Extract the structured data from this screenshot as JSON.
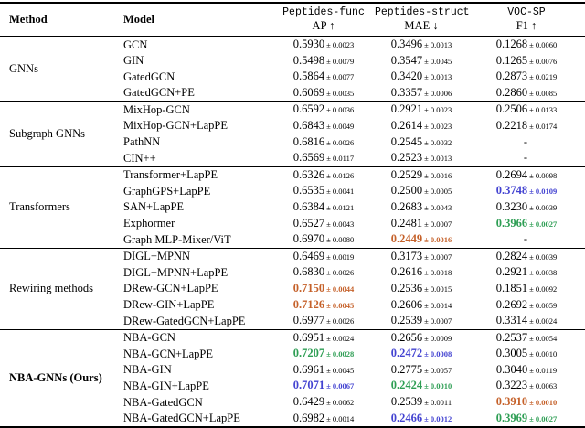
{
  "colors": {
    "hl-green": "#2e9e54",
    "hl-blue": "#4343d1",
    "hl-orange": "#c5612a",
    "rule": "#000000"
  },
  "header": {
    "method_label": "Method",
    "model_label": "Model",
    "columns": [
      {
        "dataset": "Peptides-func",
        "metric": "AP ↑"
      },
      {
        "dataset": "Peptides-struct",
        "metric": "MAE ↓"
      },
      {
        "dataset": "VOC-SP",
        "metric": "F1 ↑"
      }
    ]
  },
  "sections": [
    {
      "method": "GNNs",
      "emphasis": "normal",
      "rows": [
        {
          "model": "GCN",
          "cells": [
            {
              "v": "0.5930",
              "e": "± 0.0023",
              "hl": "none"
            },
            {
              "v": "0.3496",
              "e": "± 0.0013",
              "hl": "none"
            },
            {
              "v": "0.1268",
              "e": "± 0.0060",
              "hl": "none"
            }
          ]
        },
        {
          "model": "GIN",
          "cells": [
            {
              "v": "0.5498",
              "e": "± 0.0079",
              "hl": "none"
            },
            {
              "v": "0.3547",
              "e": "± 0.0045",
              "hl": "none"
            },
            {
              "v": "0.1265",
              "e": "± 0.0076",
              "hl": "none"
            }
          ]
        },
        {
          "model": "GatedGCN",
          "cells": [
            {
              "v": "0.5864",
              "e": "± 0.0077",
              "hl": "none"
            },
            {
              "v": "0.3420",
              "e": "± 0.0013",
              "hl": "none"
            },
            {
              "v": "0.2873",
              "e": "± 0.0219",
              "hl": "none"
            }
          ]
        },
        {
          "model": "GatedGCN+PE",
          "cells": [
            {
              "v": "0.6069",
              "e": "± 0.0035",
              "hl": "none"
            },
            {
              "v": "0.3357",
              "e": "± 0.0006",
              "hl": "none"
            },
            {
              "v": "0.2860",
              "e": "± 0.0085",
              "hl": "none"
            }
          ]
        }
      ]
    },
    {
      "method": "Subgraph GNNs",
      "emphasis": "normal",
      "rows": [
        {
          "model": "MixHop-GCN",
          "cells": [
            {
              "v": "0.6592",
              "e": "± 0.0036",
              "hl": "none"
            },
            {
              "v": "0.2921",
              "e": "± 0.0023",
              "hl": "none"
            },
            {
              "v": "0.2506",
              "e": "± 0.0133",
              "hl": "none"
            }
          ]
        },
        {
          "model": "MixHop-GCN+LapPE",
          "cells": [
            {
              "v": "0.6843",
              "e": "± 0.0049",
              "hl": "none"
            },
            {
              "v": "0.2614",
              "e": "± 0.0023",
              "hl": "none"
            },
            {
              "v": "0.2218",
              "e": "± 0.0174",
              "hl": "none"
            }
          ]
        },
        {
          "model": "PathNN",
          "cells": [
            {
              "v": "0.6816",
              "e": "± 0.0026",
              "hl": "none"
            },
            {
              "v": "0.2545",
              "e": "± 0.0032",
              "hl": "none"
            },
            {
              "v": "-",
              "e": "",
              "hl": "none"
            }
          ]
        },
        {
          "model": "CIN++",
          "cells": [
            {
              "v": "0.6569",
              "e": "± 0.0117",
              "hl": "none"
            },
            {
              "v": "0.2523",
              "e": "± 0.0013",
              "hl": "none"
            },
            {
              "v": "-",
              "e": "",
              "hl": "none"
            }
          ]
        }
      ]
    },
    {
      "method": "Transformers",
      "emphasis": "normal",
      "rows": [
        {
          "model": "Transformer+LapPE",
          "cells": [
            {
              "v": "0.6326",
              "e": "± 0.0126",
              "hl": "none"
            },
            {
              "v": "0.2529",
              "e": "± 0.0016",
              "hl": "none"
            },
            {
              "v": "0.2694",
              "e": "± 0.0098",
              "hl": "none"
            }
          ]
        },
        {
          "model": "GraphGPS+LapPE",
          "cells": [
            {
              "v": "0.6535",
              "e": "± 0.0041",
              "hl": "none"
            },
            {
              "v": "0.2500",
              "e": "± 0.0005",
              "hl": "none"
            },
            {
              "v": "0.3748",
              "e": "± 0.0109",
              "hl": "blue"
            }
          ]
        },
        {
          "model": "SAN+LapPE",
          "cells": [
            {
              "v": "0.6384",
              "e": "± 0.0121",
              "hl": "none"
            },
            {
              "v": "0.2683",
              "e": "± 0.0043",
              "hl": "none"
            },
            {
              "v": "0.3230",
              "e": "± 0.0039",
              "hl": "none"
            }
          ]
        },
        {
          "model": "Exphormer",
          "cells": [
            {
              "v": "0.6527",
              "e": "± 0.0043",
              "hl": "none"
            },
            {
              "v": "0.2481",
              "e": "± 0.0007",
              "hl": "none"
            },
            {
              "v": "0.3966",
              "e": "± 0.0027",
              "hl": "green"
            }
          ]
        },
        {
          "model": "Graph MLP-Mixer/ViT",
          "cells": [
            {
              "v": "0.6970",
              "e": "± 0.0080",
              "hl": "none"
            },
            {
              "v": "0.2449",
              "e": "± 0.0016",
              "hl": "orange"
            },
            {
              "v": "-",
              "e": "",
              "hl": "none"
            }
          ]
        }
      ]
    },
    {
      "method": "Rewiring methods",
      "emphasis": "normal",
      "rows": [
        {
          "model": "DIGL+MPNN",
          "cells": [
            {
              "v": "0.6469",
              "e": "± 0.0019",
              "hl": "none"
            },
            {
              "v": "0.3173",
              "e": "± 0.0007",
              "hl": "none"
            },
            {
              "v": "0.2824",
              "e": "± 0.0039",
              "hl": "none"
            }
          ]
        },
        {
          "model": "DIGL+MPNN+LapPE",
          "cells": [
            {
              "v": "0.6830",
              "e": "± 0.0026",
              "hl": "none"
            },
            {
              "v": "0.2616",
              "e": "± 0.0018",
              "hl": "none"
            },
            {
              "v": "0.2921",
              "e": "± 0.0038",
              "hl": "none"
            }
          ]
        },
        {
          "model": "DRew-GCN+LapPE",
          "cells": [
            {
              "v": "0.7150",
              "e": "± 0.0044",
              "hl": "orange"
            },
            {
              "v": "0.2536",
              "e": "± 0.0015",
              "hl": "none"
            },
            {
              "v": "0.1851",
              "e": "± 0.0092",
              "hl": "none"
            }
          ]
        },
        {
          "model": "DRew-GIN+LapPE",
          "cells": [
            {
              "v": "0.7126",
              "e": "± 0.0045",
              "hl": "orange"
            },
            {
              "v": "0.2606",
              "e": "± 0.0014",
              "hl": "none"
            },
            {
              "v": "0.2692",
              "e": "± 0.0059",
              "hl": "none"
            }
          ]
        },
        {
          "model": "DRew-GatedGCN+LapPE",
          "cells": [
            {
              "v": "0.6977",
              "e": "± 0.0026",
              "hl": "none"
            },
            {
              "v": "0.2539",
              "e": "± 0.0007",
              "hl": "none"
            },
            {
              "v": "0.3314",
              "e": "± 0.0024",
              "hl": "none"
            }
          ]
        }
      ]
    },
    {
      "method": "NBA-GNNs (Ours)",
      "emphasis": "bold",
      "rows": [
        {
          "model": "NBA-GCN",
          "cells": [
            {
              "v": "0.6951",
              "e": "± 0.0024",
              "hl": "none"
            },
            {
              "v": "0.2656",
              "e": "± 0.0009",
              "hl": "none"
            },
            {
              "v": "0.2537",
              "e": "± 0.0054",
              "hl": "none"
            }
          ]
        },
        {
          "model": "NBA-GCN+LapPE",
          "cells": [
            {
              "v": "0.7207",
              "e": "± 0.0028",
              "hl": "green"
            },
            {
              "v": "0.2472",
              "e": "± 0.0008",
              "hl": "blue"
            },
            {
              "v": "0.3005",
              "e": "± 0.0010",
              "hl": "none"
            }
          ]
        },
        {
          "model": "NBA-GIN",
          "cells": [
            {
              "v": "0.6961",
              "e": "± 0.0045",
              "hl": "none"
            },
            {
              "v": "0.2775",
              "e": "± 0.0057",
              "hl": "none"
            },
            {
              "v": "0.3040",
              "e": "± 0.0119",
              "hl": "none"
            }
          ]
        },
        {
          "model": "NBA-GIN+LapPE",
          "cells": [
            {
              "v": "0.7071",
              "e": "± 0.0067",
              "hl": "blue"
            },
            {
              "v": "0.2424",
              "e": "± 0.0010",
              "hl": "green"
            },
            {
              "v": "0.3223",
              "e": "± 0.0063",
              "hl": "none"
            }
          ]
        },
        {
          "model": "NBA-GatedGCN",
          "cells": [
            {
              "v": "0.6429",
              "e": "± 0.0062",
              "hl": "none"
            },
            {
              "v": "0.2539",
              "e": "± 0.0011",
              "hl": "none"
            },
            {
              "v": "0.3910",
              "e": "± 0.0010",
              "hl": "orange"
            }
          ]
        },
        {
          "model": "NBA-GatedGCN+LapPE",
          "cells": [
            {
              "v": "0.6982",
              "e": "± 0.0014",
              "hl": "none"
            },
            {
              "v": "0.2466",
              "e": "± 0.0012",
              "hl": "blue"
            },
            {
              "v": "0.3969",
              "e": "± 0.0027",
              "hl": "green"
            }
          ]
        }
      ]
    }
  ]
}
